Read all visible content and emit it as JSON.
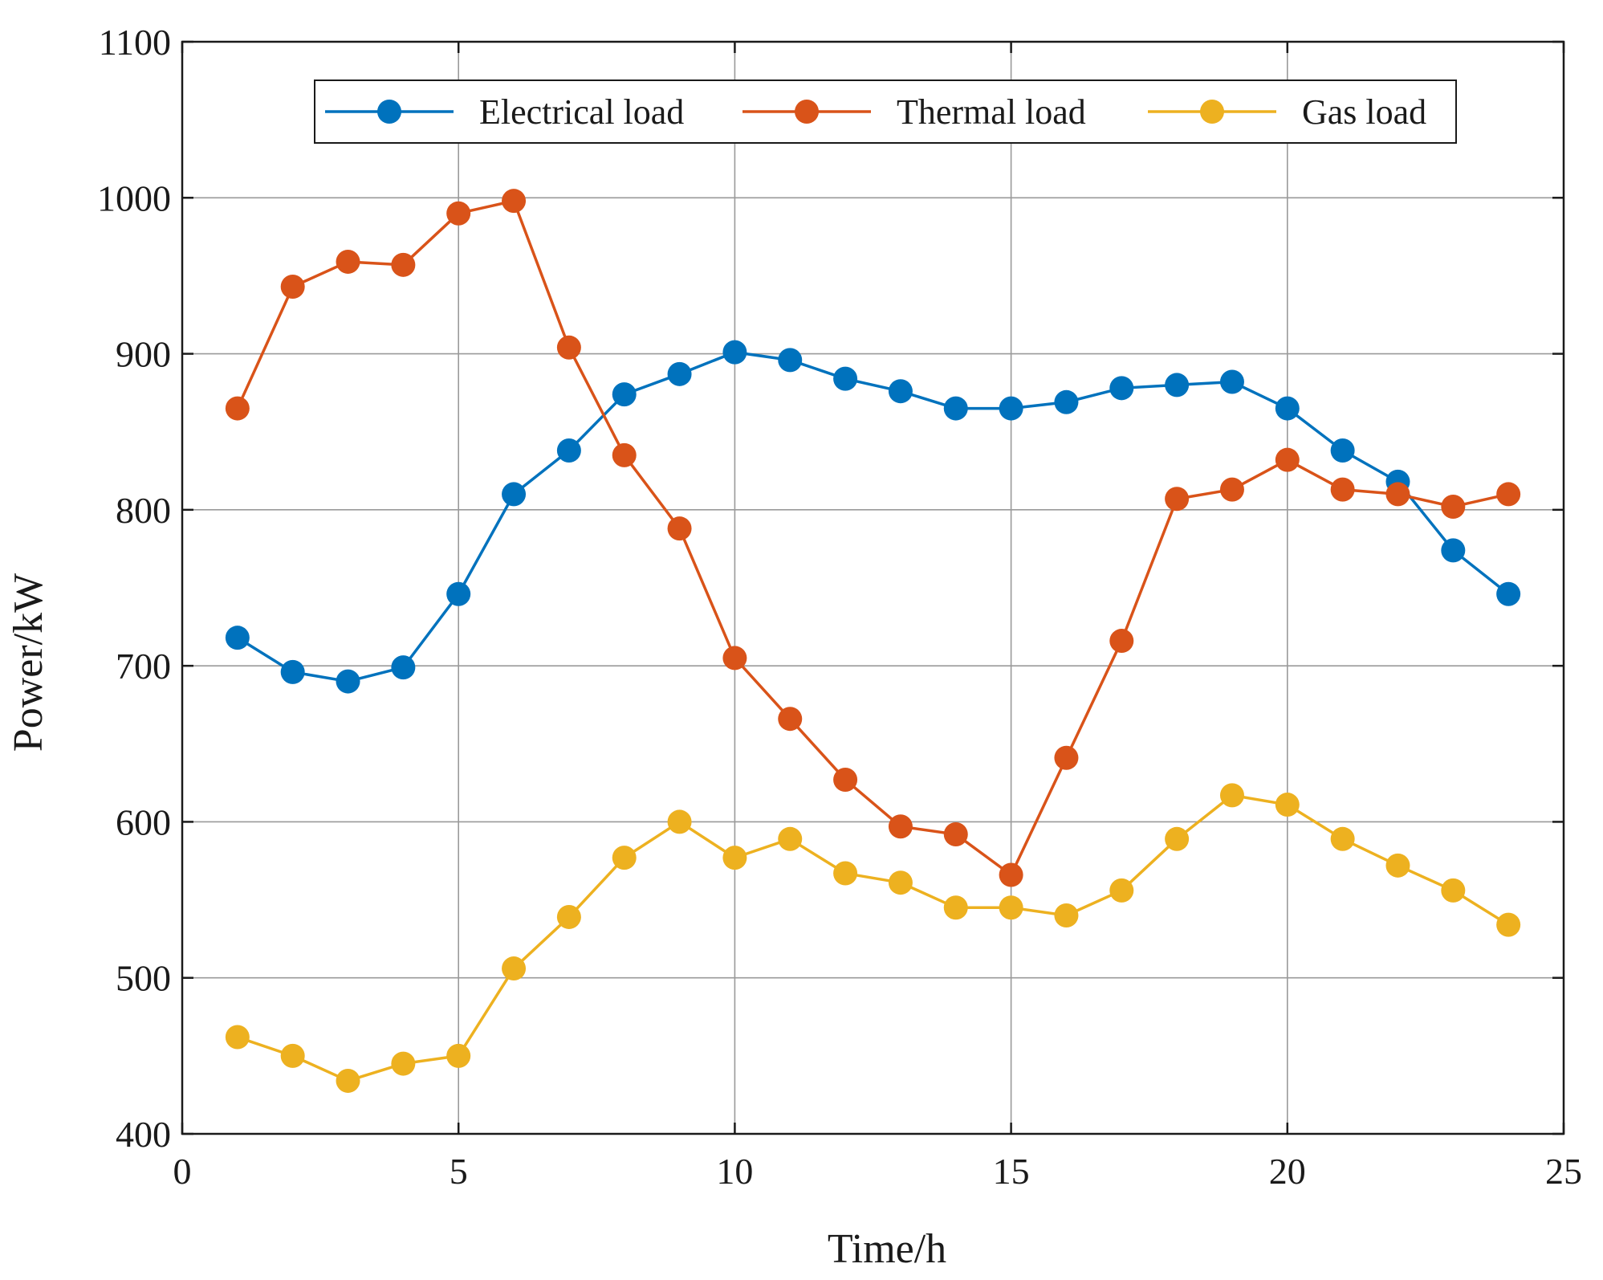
{
  "chart_data": {
    "type": "line",
    "title": "",
    "xlabel": "Time/h",
    "ylabel": "Power/kW",
    "xlim": [
      0,
      25
    ],
    "ylim": [
      400,
      1100
    ],
    "xticks": [
      0,
      5,
      10,
      15,
      20,
      25
    ],
    "yticks": [
      400,
      500,
      600,
      700,
      800,
      900,
      1000,
      1100
    ],
    "grid": true,
    "legend_position": "top-right",
    "x": [
      1,
      2,
      3,
      4,
      5,
      6,
      7,
      8,
      9,
      10,
      11,
      12,
      13,
      14,
      15,
      16,
      17,
      18,
      19,
      20,
      21,
      22,
      23,
      24
    ],
    "series": [
      {
        "name": "Electrical load",
        "color": "#0072BD",
        "values": [
          718,
          696,
          690,
          699,
          746,
          810,
          838,
          874,
          887,
          901,
          896,
          884,
          876,
          865,
          865,
          869,
          878,
          880,
          882,
          865,
          838,
          818,
          774,
          746
        ]
      },
      {
        "name": "Thermal load",
        "color": "#D95319",
        "values": [
          865,
          943,
          959,
          957,
          990,
          998,
          904,
          835,
          788,
          705,
          666,
          627,
          597,
          592,
          566,
          641,
          716,
          807,
          813,
          832,
          813,
          810,
          802,
          810
        ]
      },
      {
        "name": "Gas load",
        "color": "#EDB120",
        "values": [
          462,
          450,
          434,
          445,
          450,
          506,
          539,
          577,
          600,
          577,
          589,
          567,
          561,
          545,
          545,
          540,
          556,
          589,
          617,
          611,
          589,
          572,
          556,
          534
        ]
      }
    ]
  }
}
